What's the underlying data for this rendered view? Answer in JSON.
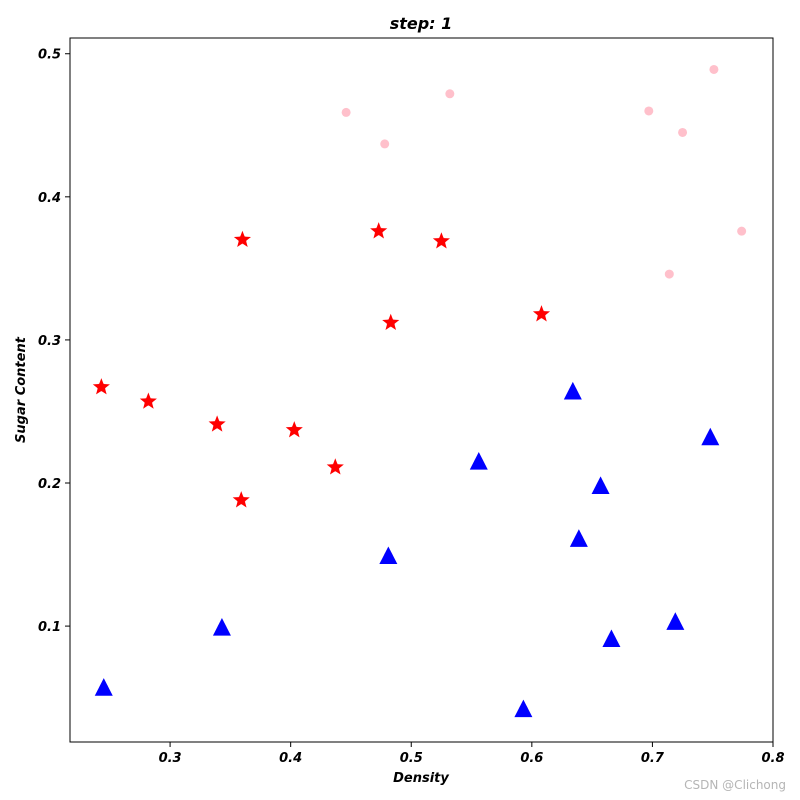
{
  "chart_data": {
    "type": "scatter",
    "title": "step: 1",
    "xlabel": "Density",
    "ylabel": "Sugar Content",
    "xlim": [
      0.217,
      0.8
    ],
    "ylim": [
      0.019,
      0.511
    ],
    "xticks": [
      0.3,
      0.4,
      0.5,
      0.6,
      0.7,
      0.8
    ],
    "xtick_labels": [
      "0.3",
      "0.4",
      "0.5",
      "0.6",
      "0.7",
      "0.8"
    ],
    "yticks": [
      0.1,
      0.2,
      0.3,
      0.4,
      0.5
    ],
    "ytick_labels": [
      "0.1",
      "0.2",
      "0.3",
      "0.4",
      "0.5"
    ],
    "grid": false,
    "series": [
      {
        "marker": "circle",
        "color": "#ffc0cb",
        "points": [
          [
            0.697,
            0.46
          ],
          [
            0.774,
            0.376
          ],
          [
            0.634,
            0.264
          ],
          [
            0.608,
            0.318
          ],
          [
            0.556,
            0.215
          ],
          [
            0.403,
            0.237
          ],
          [
            0.481,
            0.149
          ],
          [
            0.437,
            0.211
          ],
          [
            0.666,
            0.091
          ],
          [
            0.243,
            0.267
          ],
          [
            0.245,
            0.057
          ],
          [
            0.343,
            0.099
          ],
          [
            0.639,
            0.161
          ],
          [
            0.657,
            0.198
          ],
          [
            0.36,
            0.37
          ],
          [
            0.593,
            0.042
          ],
          [
            0.719,
            0.103
          ],
          [
            0.359,
            0.188
          ],
          [
            0.339,
            0.241
          ],
          [
            0.282,
            0.257
          ],
          [
            0.748,
            0.232
          ],
          [
            0.714,
            0.346
          ],
          [
            0.483,
            0.312
          ],
          [
            0.478,
            0.437
          ],
          [
            0.525,
            0.369
          ],
          [
            0.751,
            0.489
          ],
          [
            0.532,
            0.472
          ],
          [
            0.473,
            0.376
          ],
          [
            0.725,
            0.445
          ],
          [
            0.446,
            0.459
          ]
        ]
      },
      {
        "marker": "star",
        "color": "#ff0000",
        "points": [
          [
            0.608,
            0.318
          ],
          [
            0.403,
            0.237
          ],
          [
            0.437,
            0.211
          ],
          [
            0.243,
            0.267
          ],
          [
            0.36,
            0.37
          ],
          [
            0.359,
            0.188
          ],
          [
            0.339,
            0.241
          ],
          [
            0.282,
            0.257
          ],
          [
            0.483,
            0.312
          ],
          [
            0.525,
            0.369
          ],
          [
            0.473,
            0.376
          ]
        ]
      },
      {
        "marker": "triangle",
        "color": "#0000ff",
        "points": [
          [
            0.634,
            0.264
          ],
          [
            0.556,
            0.215
          ],
          [
            0.481,
            0.149
          ],
          [
            0.666,
            0.091
          ],
          [
            0.245,
            0.057
          ],
          [
            0.343,
            0.099
          ],
          [
            0.639,
            0.161
          ],
          [
            0.657,
            0.198
          ],
          [
            0.593,
            0.042
          ],
          [
            0.719,
            0.103
          ],
          [
            0.748,
            0.232
          ]
        ]
      }
    ]
  },
  "watermark": "CSDN @Clichong"
}
